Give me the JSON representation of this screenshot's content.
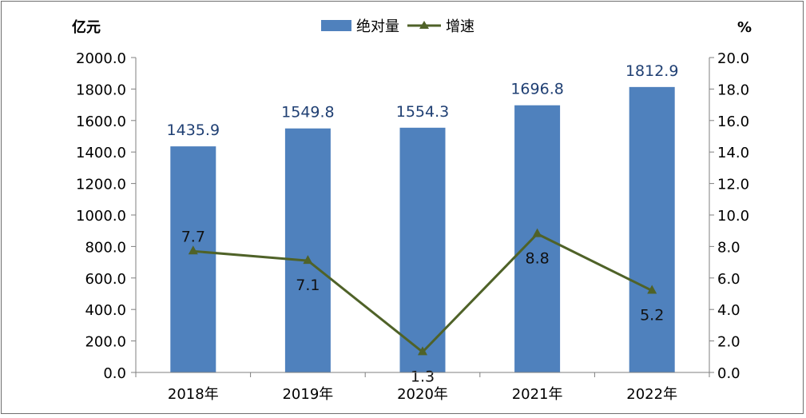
{
  "chart_data": {
    "type": "bar",
    "title": "",
    "categories": [
      "2018年",
      "2019年",
      "2020年",
      "2021年",
      "2022年"
    ],
    "series": [
      {
        "name": "绝对量",
        "type": "bar",
        "axis": "left",
        "color": "#4f81bd",
        "label_color": "#1f3f73",
        "values": [
          1435.9,
          1549.8,
          1554.3,
          1696.8,
          1812.9
        ],
        "labels": [
          "1435.9",
          "1549.8",
          "1554.3",
          "1696.8",
          "1812.9"
        ]
      },
      {
        "name": "增速",
        "type": "line",
        "marker": "triangle",
        "axis": "right",
        "color": "#4f6228",
        "label_color": "#111111",
        "values": [
          7.7,
          7.1,
          1.3,
          8.8,
          5.2
        ],
        "labels": [
          "7.7",
          "7.1",
          "1.3",
          "8.8",
          "5.2"
        ],
        "label_positions": [
          "above",
          "below",
          "below",
          "below",
          "below"
        ]
      }
    ],
    "y_left": {
      "label": "亿元",
      "lim": [
        0,
        2000
      ],
      "ticks": [
        "0.0",
        "200.0",
        "400.0",
        "600.0",
        "800.0",
        "1000.0",
        "1200.0",
        "1400.0",
        "1600.0",
        "1800.0",
        "2000.0"
      ]
    },
    "y_right": {
      "label": "%",
      "lim": [
        0,
        20
      ],
      "ticks": [
        "0.0",
        "2.0",
        "4.0",
        "6.0",
        "8.0",
        "10.0",
        "12.0",
        "14.0",
        "16.0",
        "18.0",
        "20.0"
      ]
    },
    "grid": false,
    "legend": "top-center"
  }
}
